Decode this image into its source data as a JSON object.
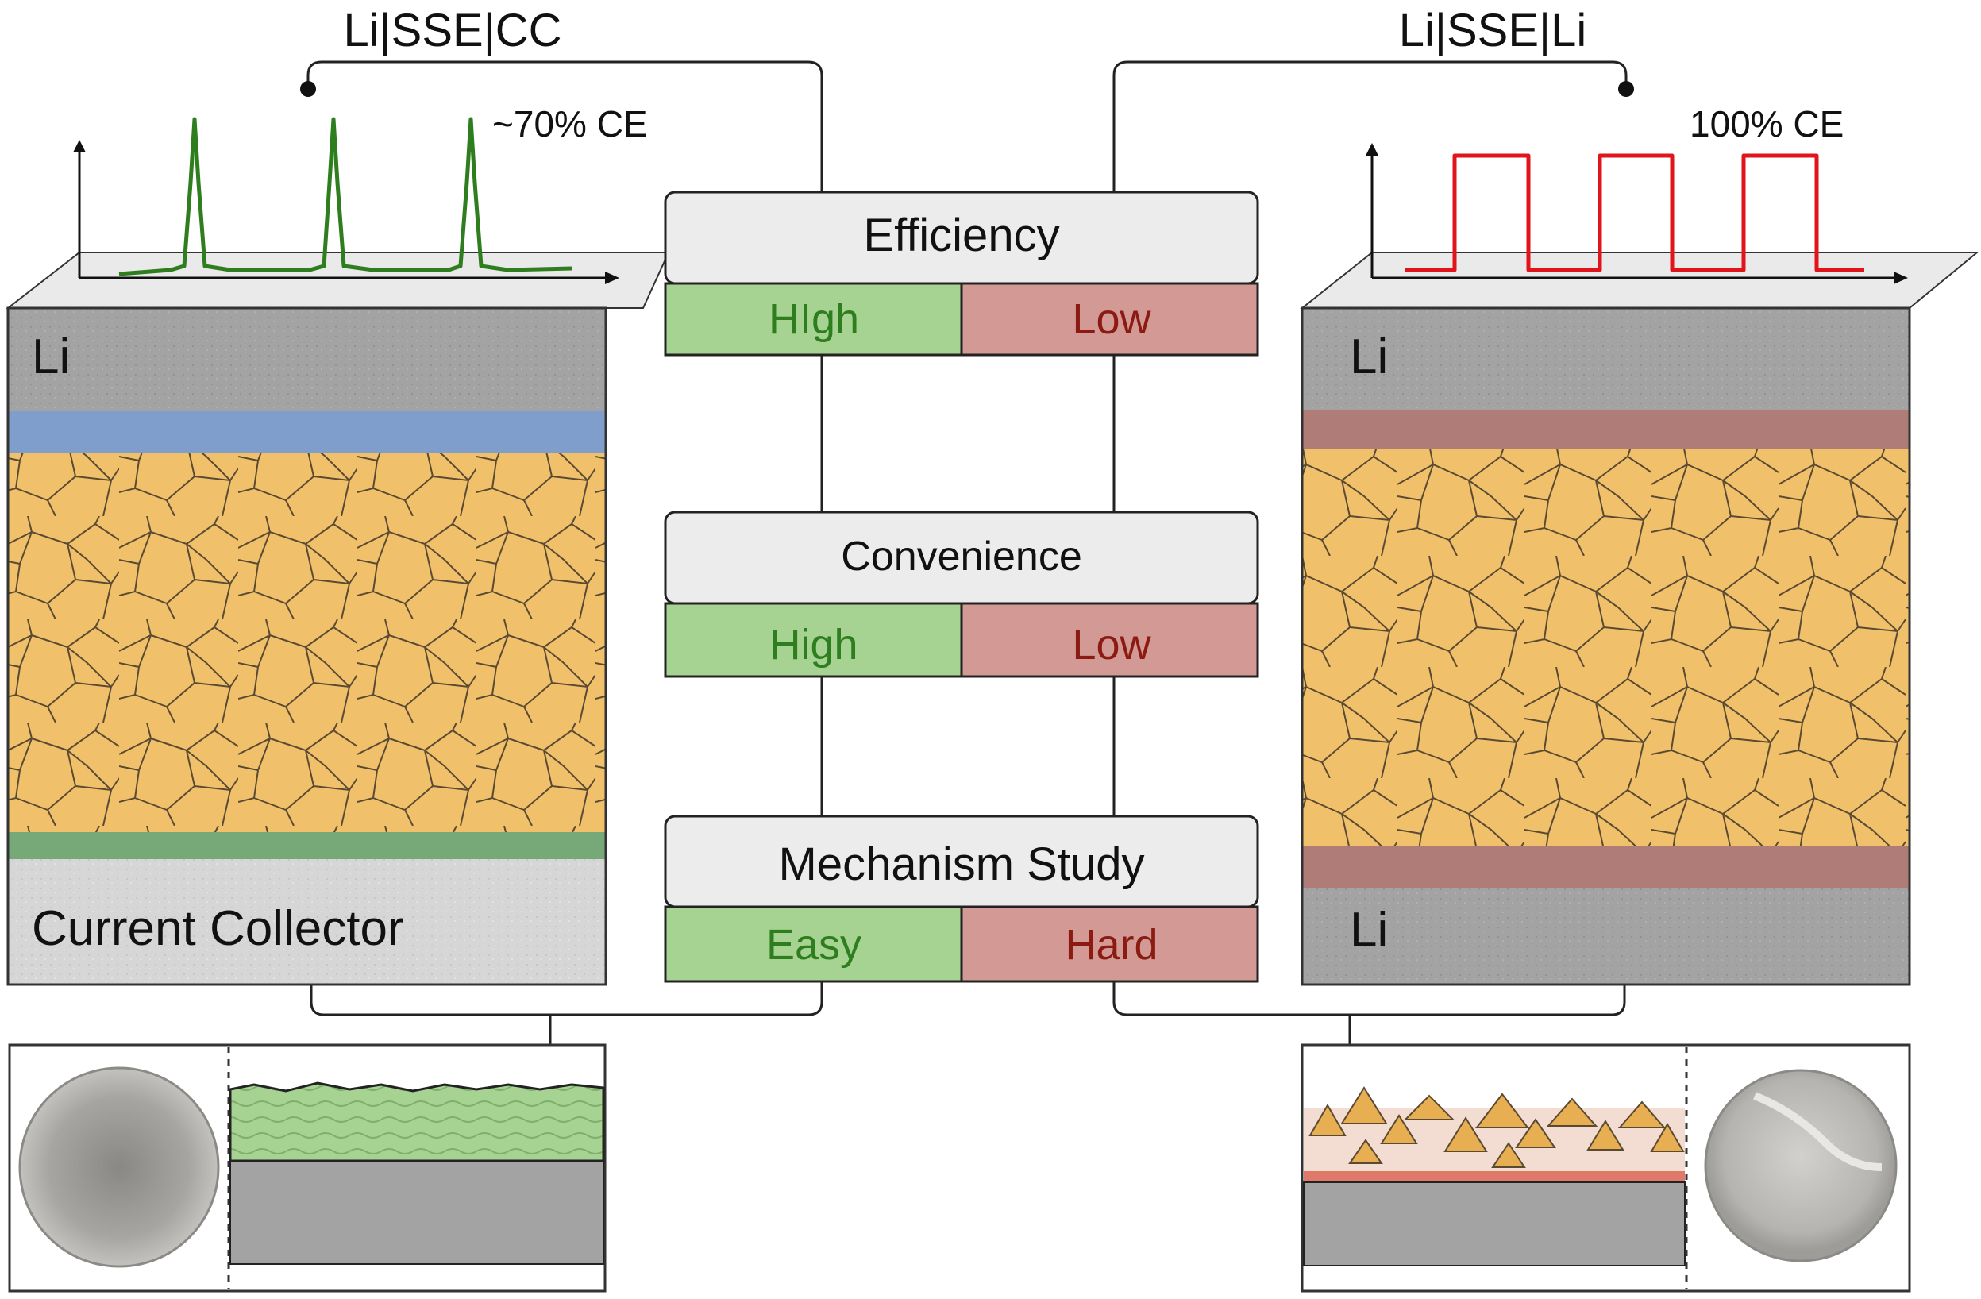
{
  "left_cell": {
    "title": "Li|SSE|CC",
    "ce_label": "~70% CE",
    "top_layer_label": "Li",
    "bottom_layer_label": "Current Collector"
  },
  "right_cell": {
    "title": "Li|SSE|Li",
    "ce_label": "100% CE",
    "top_layer_label": "Li",
    "bottom_layer_label": "Li"
  },
  "comparison": [
    {
      "heading": "Efficiency",
      "left": "HIgh",
      "right": "Low"
    },
    {
      "heading": "Convenience",
      "left": "High",
      "right": "Low"
    },
    {
      "heading": "Mechanism Study",
      "left": "Easy",
      "right": "Hard"
    }
  ],
  "colors": {
    "good": "#a6d391",
    "good_text": "#2e7d1e",
    "bad": "#d39a95",
    "bad_text": "#8b1a12",
    "electrolyte": "#f1c06b",
    "li": "#a3a3a3",
    "cc": "#d6d6d6",
    "interphase_left_top": "#7f9ecc",
    "interphase_left_bottom": "#77a877",
    "interphase_right": "#b07c77",
    "left_trace": "#2e7d1e",
    "right_trace": "#e0141b"
  }
}
